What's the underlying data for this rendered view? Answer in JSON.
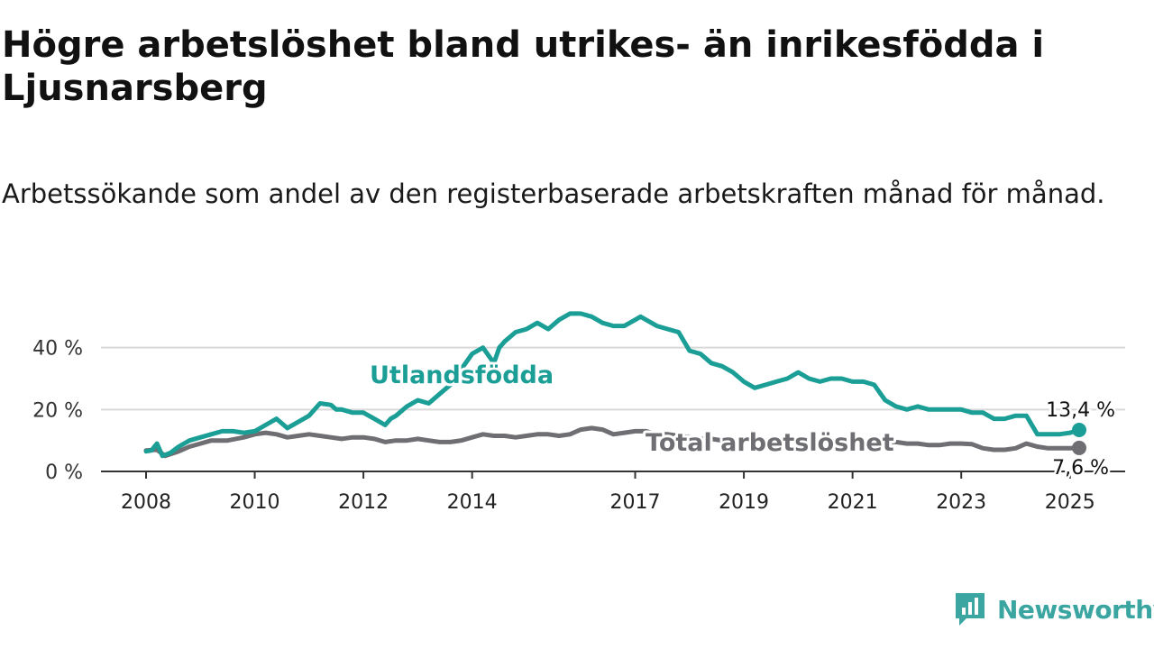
{
  "title": "Högre arbetslöshet bland utrikes- än inrikesfödda i Ljusnarsberg",
  "subtitle": "Arbetssökande som andel av den registerbaserade arbetskraften månad för månad.",
  "brand": {
    "name": "Newsworthy",
    "color": "#3aa5a1"
  },
  "chart_data": {
    "type": "line",
    "title": "",
    "xlabel": "",
    "ylabel": "",
    "ylim": [
      0,
      55
    ],
    "xlim": [
      2008.0,
      2025.3
    ],
    "y_ticks": [
      0,
      20,
      40
    ],
    "y_tick_labels": [
      "0 %",
      "20 %",
      "40 %"
    ],
    "x_tick_labels": [
      "2008",
      "2010",
      "2012",
      "2014",
      "2017",
      "2019",
      "2021",
      "2023",
      "2025"
    ],
    "x_tick_positions": [
      2008.0,
      2010.0,
      2012.0,
      2014.0,
      2017.0,
      2019.0,
      2021.0,
      2023.0,
      2025.0
    ],
    "grid": true,
    "legend": "direct labels on lines",
    "series": [
      {
        "name": "Utlandsfödda",
        "color": "#1a9e96",
        "end_label": "13,4 %",
        "end_value": 13.4,
        "x": [
          2008.0,
          2008.1,
          2008.2,
          2008.3,
          2008.45,
          2008.6,
          2008.8,
          2009.0,
          2009.2,
          2009.4,
          2009.6,
          2009.8,
          2010.0,
          2010.2,
          2010.4,
          2010.6,
          2010.8,
          2011.0,
          2011.2,
          2011.4,
          2011.5,
          2011.6,
          2011.8,
          2012.0,
          2012.2,
          2012.4,
          2012.5,
          2012.6,
          2012.8,
          2013.0,
          2013.2,
          2013.4,
          2013.6,
          2013.8,
          2014.0,
          2014.2,
          2014.4,
          2014.5,
          2014.6,
          2014.8,
          2015.0,
          2015.2,
          2015.4,
          2015.6,
          2015.8,
          2016.0,
          2016.2,
          2016.4,
          2016.6,
          2016.8,
          2017.0,
          2017.1,
          2017.2,
          2017.4,
          2017.6,
          2017.8,
          2018.0,
          2018.2,
          2018.4,
          2018.6,
          2018.8,
          2019.0,
          2019.2,
          2019.4,
          2019.6,
          2019.8,
          2020.0,
          2020.2,
          2020.4,
          2020.6,
          2020.8,
          2021.0,
          2021.2,
          2021.4,
          2021.6,
          2021.8,
          2022.0,
          2022.2,
          2022.4,
          2022.6,
          2022.8,
          2023.0,
          2023.2,
          2023.4,
          2023.6,
          2023.8,
          2024.0,
          2024.2,
          2024.4,
          2024.6,
          2024.8,
          2025.0,
          2025.17
        ],
        "values": [
          6.5,
          6.8,
          9.0,
          5.0,
          6.0,
          8.0,
          10.0,
          11.0,
          12.0,
          13.0,
          13.0,
          12.5,
          13.0,
          15.0,
          17.0,
          14.0,
          16.0,
          18.0,
          22.0,
          21.5,
          20.0,
          20.0,
          19.0,
          19.0,
          17.0,
          15.0,
          17.0,
          18.0,
          21.0,
          23.0,
          22.0,
          25.0,
          28.0,
          33.0,
          38.0,
          40.0,
          35.0,
          40.0,
          42.0,
          45.0,
          46.0,
          48.0,
          46.0,
          49.0,
          51.0,
          51.0,
          50.0,
          48.0,
          47.0,
          47.0,
          49.0,
          50.0,
          49.0,
          47.0,
          46.0,
          45.0,
          39.0,
          38.0,
          35.0,
          34.0,
          32.0,
          29.0,
          27.0,
          28.0,
          29.0,
          30.0,
          32.0,
          30.0,
          29.0,
          30.0,
          30.0,
          29.0,
          29.0,
          28.0,
          23.0,
          21.0,
          20.0,
          21.0,
          20.0,
          20.0,
          20.0,
          20.0,
          19.0,
          19.0,
          17.0,
          17.0,
          18.0,
          18.0,
          12.0,
          12.0,
          12.0,
          12.5,
          13.4
        ]
      },
      {
        "name": "Total arbetslöshet",
        "color": "#6e6e73",
        "end_label": "7,6 %",
        "end_value": 7.6,
        "x": [
          2008.0,
          2008.2,
          2008.35,
          2008.6,
          2008.8,
          2009.0,
          2009.2,
          2009.5,
          2009.8,
          2010.0,
          2010.2,
          2010.4,
          2010.6,
          2010.8,
          2011.0,
          2011.2,
          2011.4,
          2011.6,
          2011.8,
          2012.0,
          2012.2,
          2012.4,
          2012.6,
          2012.8,
          2013.0,
          2013.2,
          2013.4,
          2013.6,
          2013.8,
          2014.0,
          2014.2,
          2014.4,
          2014.6,
          2014.8,
          2015.0,
          2015.2,
          2015.4,
          2015.6,
          2015.8,
          2016.0,
          2016.2,
          2016.4,
          2016.6,
          2016.8,
          2017.0,
          2017.2,
          2017.4,
          2017.6,
          2017.8,
          2018.0,
          2018.2,
          2018.4,
          2018.6,
          2018.8,
          2019.0,
          2019.2,
          2019.4,
          2019.6,
          2019.8,
          2020.0,
          2020.2,
          2020.4,
          2020.6,
          2020.8,
          2021.0,
          2021.2,
          2021.4,
          2021.6,
          2021.8,
          2022.0,
          2022.2,
          2022.4,
          2022.6,
          2022.8,
          2023.0,
          2023.2,
          2023.4,
          2023.6,
          2023.8,
          2024.0,
          2024.2,
          2024.4,
          2024.6,
          2024.8,
          2025.0,
          2025.17
        ],
        "values": [
          6.8,
          7.0,
          5.0,
          6.5,
          8.0,
          9.0,
          10.0,
          10.0,
          11.0,
          12.0,
          12.5,
          12.0,
          11.0,
          11.5,
          12.0,
          11.5,
          11.0,
          10.5,
          11.0,
          11.0,
          10.5,
          9.5,
          10.0,
          10.0,
          10.5,
          10.0,
          9.5,
          9.5,
          10.0,
          11.0,
          12.0,
          11.5,
          11.5,
          11.0,
          11.5,
          12.0,
          12.0,
          11.5,
          12.0,
          13.5,
          14.0,
          13.5,
          12.0,
          12.5,
          13.0,
          13.0,
          12.0,
          12.0,
          11.5,
          11.0,
          10.5,
          10.5,
          10.0,
          10.0,
          10.0,
          10.0,
          10.0,
          10.0,
          10.0,
          10.0,
          10.0,
          10.0,
          10.0,
          10.0,
          10.0,
          10.0,
          10.0,
          9.5,
          9.5,
          9.0,
          9.0,
          8.5,
          8.5,
          9.0,
          9.0,
          8.8,
          7.5,
          7.0,
          7.0,
          7.5,
          9.0,
          8.0,
          7.5,
          7.5,
          7.5,
          7.6
        ]
      }
    ]
  }
}
